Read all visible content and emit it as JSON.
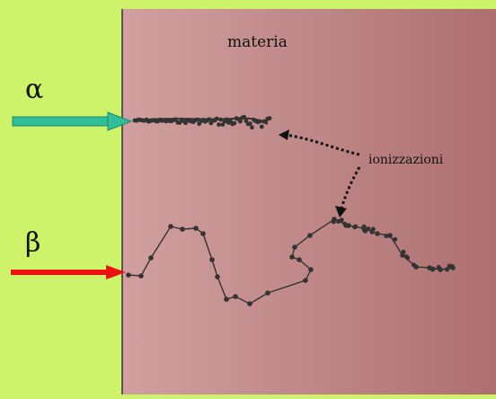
{
  "labels": {
    "material": "materia",
    "alpha": "α",
    "beta": "β",
    "ionizations": "ionizzazioni"
  },
  "colors": {
    "background": "#ccf36a",
    "material_start": "#d2a0a0",
    "material_end": "#ad6f6f",
    "alpha_arrow": "#2fbf9a",
    "beta_arrow": "#ee1111",
    "dots": "#333333",
    "pointer": "#111111"
  }
}
